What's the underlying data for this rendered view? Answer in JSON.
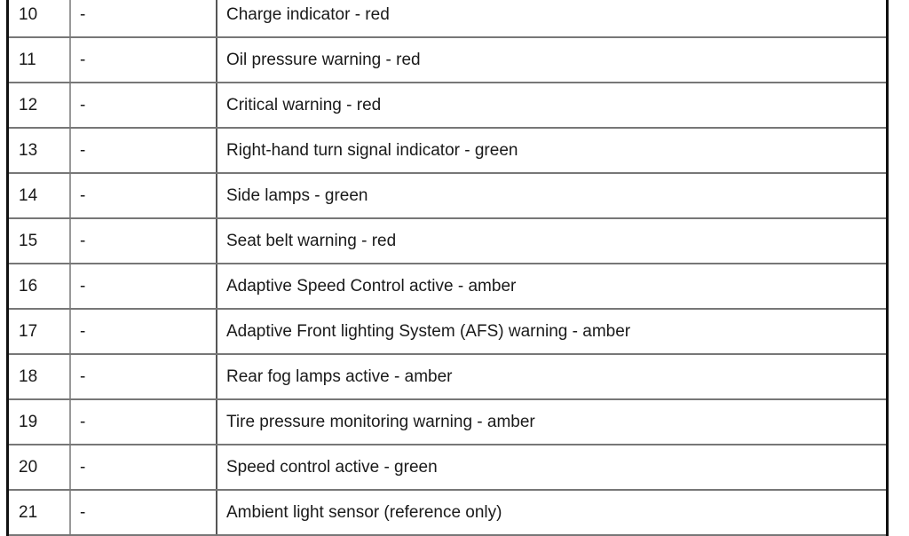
{
  "rows": [
    {
      "num": "10",
      "ref": "-",
      "desc": "Charge indicator - red"
    },
    {
      "num": "11",
      "ref": "-",
      "desc": "Oil pressure warning - red"
    },
    {
      "num": "12",
      "ref": "-",
      "desc": "Critical warning - red"
    },
    {
      "num": "13",
      "ref": "-",
      "desc": "Right-hand turn signal indicator - green"
    },
    {
      "num": "14",
      "ref": "-",
      "desc": "Side lamps - green"
    },
    {
      "num": "15",
      "ref": "-",
      "desc": "Seat belt warning - red"
    },
    {
      "num": "16",
      "ref": "-",
      "desc": "Adaptive Speed Control active - amber"
    },
    {
      "num": "17",
      "ref": "-",
      "desc": "Adaptive Front lighting System (AFS) warning - amber"
    },
    {
      "num": "18",
      "ref": "-",
      "desc": "Rear fog lamps active - amber"
    },
    {
      "num": "19",
      "ref": "-",
      "desc": "Tire pressure monitoring warning - amber"
    },
    {
      "num": "20",
      "ref": "-",
      "desc": "Speed control active - green"
    },
    {
      "num": "21",
      "ref": "-",
      "desc": "Ambient light sensor (reference only)"
    }
  ]
}
